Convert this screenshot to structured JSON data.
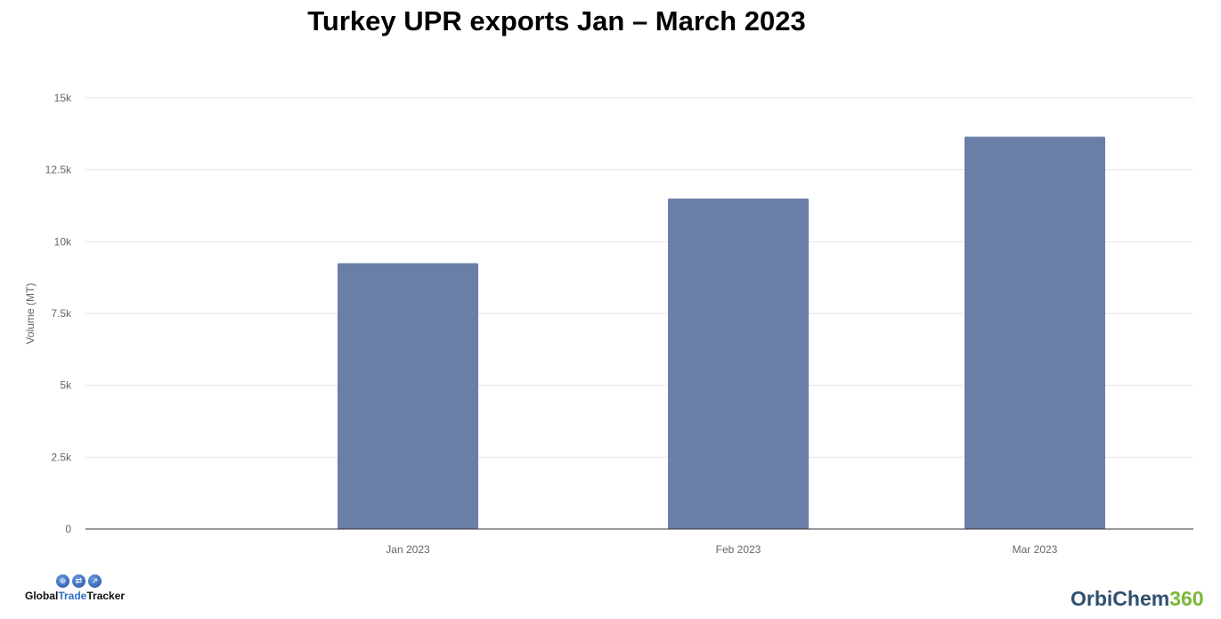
{
  "chart_data": {
    "type": "bar",
    "title": "Turkey UPR exports Jan – March 2023",
    "xlabel": "",
    "ylabel": "Volume (MT)",
    "categories": [
      "Jan 2023",
      "Feb 2023",
      "Mar 2023"
    ],
    "values": [
      9250,
      11500,
      13650
    ],
    "ylim": [
      0,
      15000
    ],
    "yticks": [
      0,
      2500,
      5000,
      7500,
      10000,
      12500,
      15000
    ],
    "ytick_labels": [
      "0",
      "2.5k",
      "5k",
      "7.5k",
      "10k",
      "12.5k",
      "15k"
    ],
    "grid": true,
    "bar_color": "#6a7fa8"
  },
  "logos": {
    "left": "GlobalTradeTracker",
    "left_parts": [
      "Global",
      "Trade",
      "Tracker"
    ],
    "right": "OrbiChem360",
    "right_parts": [
      "OrbiChem",
      "360"
    ]
  }
}
